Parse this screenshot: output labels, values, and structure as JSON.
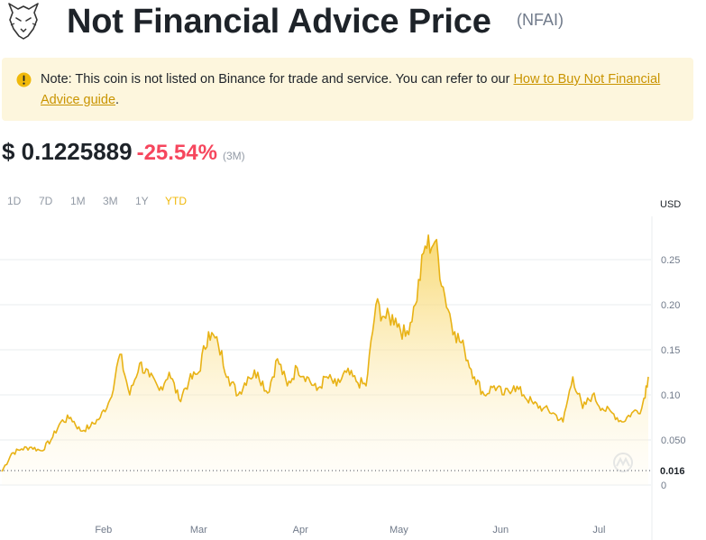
{
  "header": {
    "title": "Not Financial Advice Price",
    "symbol": "(NFAI)",
    "logo_icon": "wolf-head-logo"
  },
  "note": {
    "icon": "info-circle-icon",
    "text": "Note: This coin is not listed on Binance for trade and service. You can refer to our ",
    "link_text": "How to Buy Not Financial Advice guide",
    "suffix": "."
  },
  "price": {
    "value": "$ 0.1225889",
    "change": "-25.54%",
    "period": "(3M)"
  },
  "ranges": [
    "1D",
    "7D",
    "1M",
    "3M",
    "1Y",
    "YTD"
  ],
  "selected_range": "YTD",
  "currency": "USD",
  "colors": {
    "accent": "#f0b90b",
    "negative": "#f6465d",
    "line": "#e8b215",
    "note_bg": "#fdf6dd"
  },
  "chart_data": {
    "type": "area",
    "title": "",
    "xlabel": "",
    "ylabel": "",
    "x_ticks": [
      "Feb",
      "Mar",
      "Apr",
      "May",
      "Jun",
      "Jul"
    ],
    "y_ticks": [
      "0.25",
      "0.20",
      "0.15",
      "0.10",
      "0.050",
      "0"
    ],
    "y_tick_values": [
      0.25,
      0.2,
      0.15,
      0.1,
      0.05,
      0
    ],
    "ylim": [
      0,
      0.29
    ],
    "grid": true,
    "current_marker": {
      "label": "0.016",
      "value": 0.016
    },
    "x": [
      "2024-01-01",
      "2024-01-04",
      "2024-01-07",
      "2024-01-10",
      "2024-01-13",
      "2024-01-16",
      "2024-01-19",
      "2024-01-22",
      "2024-01-25",
      "2024-01-28",
      "2024-01-31",
      "2024-02-03",
      "2024-02-06",
      "2024-02-09",
      "2024-02-12",
      "2024-02-15",
      "2024-02-18",
      "2024-02-21",
      "2024-02-24",
      "2024-02-27",
      "2024-03-01",
      "2024-03-04",
      "2024-03-07",
      "2024-03-10",
      "2024-03-13",
      "2024-03-16",
      "2024-03-19",
      "2024-03-22",
      "2024-03-25",
      "2024-03-28",
      "2024-03-31",
      "2024-04-03",
      "2024-04-06",
      "2024-04-09",
      "2024-04-12",
      "2024-04-15",
      "2024-04-18",
      "2024-04-21",
      "2024-04-24",
      "2024-04-27",
      "2024-04-30",
      "2024-05-03",
      "2024-05-06",
      "2024-05-09",
      "2024-05-12",
      "2024-05-15",
      "2024-05-18",
      "2024-05-21",
      "2024-05-24",
      "2024-05-27",
      "2024-05-30",
      "2024-06-02",
      "2024-06-05",
      "2024-06-08",
      "2024-06-11",
      "2024-06-14",
      "2024-06-17",
      "2024-06-20",
      "2024-06-23",
      "2024-06-26",
      "2024-06-29",
      "2024-07-02",
      "2024-07-05",
      "2024-07-08",
      "2024-07-11",
      "2024-07-14",
      "2024-07-16"
    ],
    "series": [
      {
        "values": [
          0.015,
          0.035,
          0.04,
          0.042,
          0.038,
          0.05,
          0.07,
          0.075,
          0.06,
          0.065,
          0.075,
          0.095,
          0.145,
          0.1,
          0.135,
          0.12,
          0.105,
          0.125,
          0.095,
          0.115,
          0.125,
          0.17,
          0.155,
          0.12,
          0.1,
          0.12,
          0.125,
          0.102,
          0.14,
          0.11,
          0.13,
          0.12,
          0.105,
          0.12,
          0.11,
          0.125,
          0.115,
          0.11,
          0.2,
          0.185,
          0.185,
          0.165,
          0.2,
          0.265,
          0.27,
          0.21,
          0.17,
          0.15,
          0.12,
          0.1,
          0.11,
          0.1,
          0.11,
          0.1,
          0.09,
          0.085,
          0.08,
          0.07,
          0.12,
          0.085,
          0.1,
          0.085,
          0.08,
          0.07,
          0.08,
          0.085,
          0.12
        ]
      }
    ]
  }
}
